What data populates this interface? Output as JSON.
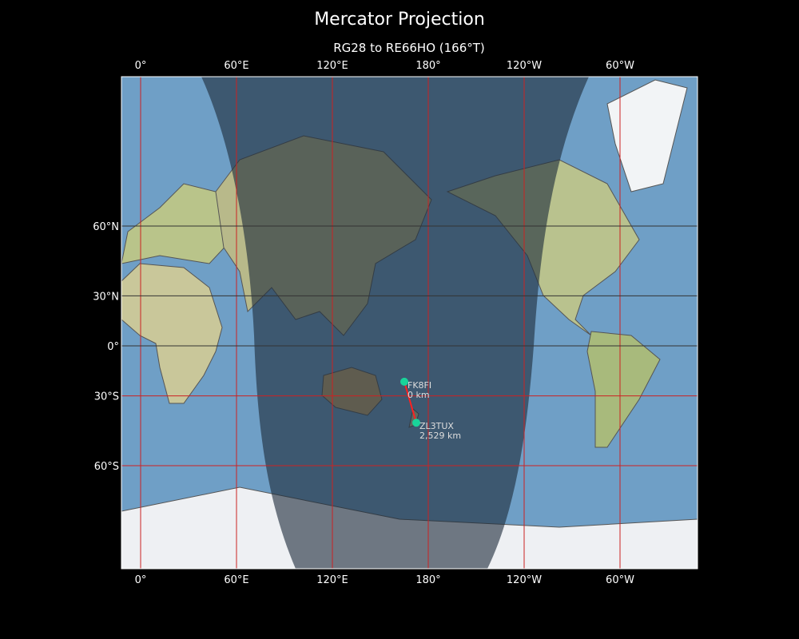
{
  "title": "Mercator Projection",
  "subtitle": "RG28 to RE66HO (166°T)",
  "map": {
    "projection": "mercator",
    "central_longitude": 168,
    "lon_ticks": [
      {
        "lon": 0,
        "label": "0°"
      },
      {
        "lon": 60,
        "label": "60°E"
      },
      {
        "lon": 120,
        "label": "120°E"
      },
      {
        "lon": 180,
        "label": "180°"
      },
      {
        "lon": 240,
        "label": "120°W"
      },
      {
        "lon": 300,
        "label": "60°W"
      }
    ],
    "lat_ticks": [
      {
        "lat": 60,
        "label": "60°N"
      },
      {
        "lat": 30,
        "label": "30°N"
      },
      {
        "lat": 0,
        "label": "0°"
      },
      {
        "lat": -30,
        "label": "30°S"
      },
      {
        "lat": -60,
        "label": "60°S"
      }
    ],
    "grid_color": "#cc2222",
    "ocean_color": "#6f9fc6",
    "land_color": "#c9c79a",
    "night_shadow": true,
    "path_color": "#ff2020",
    "marker_color": "#19d39a",
    "stations": [
      {
        "call": "FK8FI",
        "distance": "0 km",
        "lon": 165,
        "lat": -22
      },
      {
        "call": "ZL3TUX",
        "distance": "2,529 km",
        "lon": 172.5,
        "lat": -43.5
      }
    ]
  }
}
